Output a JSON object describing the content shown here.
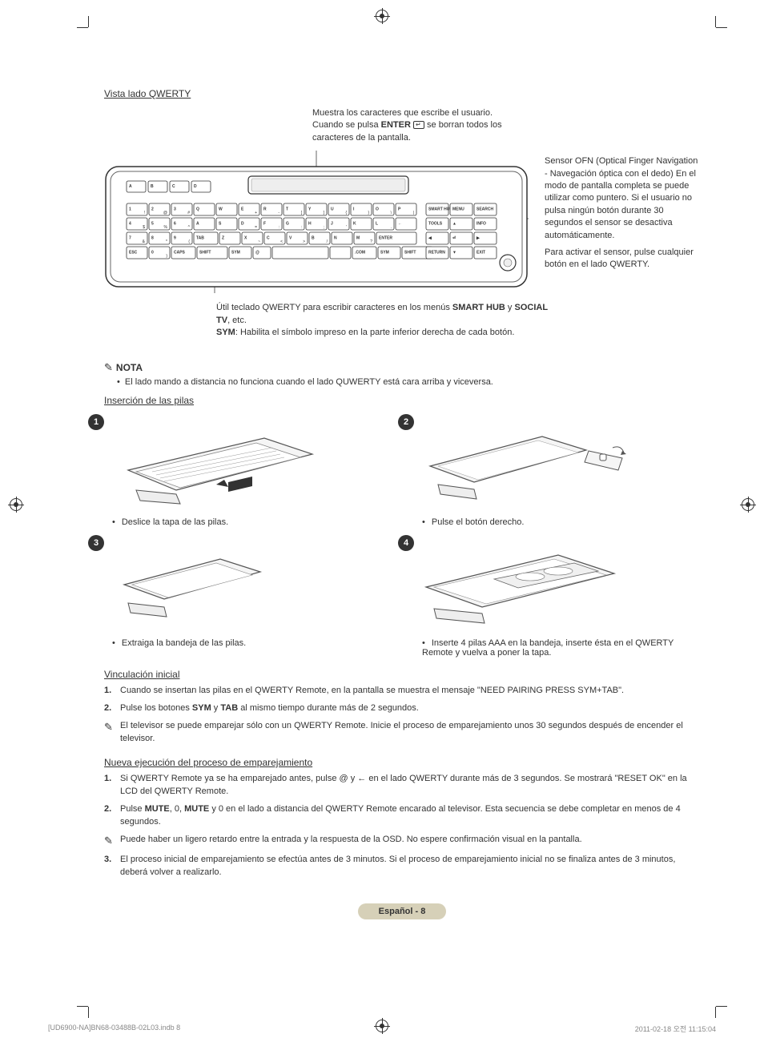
{
  "heading_qwerty": "Vista lado QWERTY",
  "callout_top_line1": "Muestra los caracteres que escribe el usuario.",
  "callout_top_line2a": "Cuando se pulsa ",
  "callout_top_line2b": "ENTER",
  "callout_top_line2c": " se borran todos los",
  "callout_top_line3": "caracteres de la pantalla.",
  "sensor": {
    "p1": "Sensor OFN (Optical Finger Navigation - Navegación óptica con el dedo) En el modo de pantalla completa se puede utilizar como puntero. Si el usuario no pulsa ningún botón durante 30 segundos el sensor se desactiva automáticamente.",
    "p2": "Para activar el sensor, pulse cualquier botón en el lado QWERTY."
  },
  "qwerty_desc": {
    "line1a": "Útil teclado QWERTY para escribir caracteres en los menús ",
    "line1b": "SMART HUB",
    "line1c": " y ",
    "line1d": "SOCIAL TV",
    "line1e": ", etc.",
    "line2a": "SYM",
    "line2b": ": Habilita el símbolo impreso en la parte inferior derecha de cada botón."
  },
  "nota_label": "NOTA",
  "nota_bullet": "El lado mando a distancia no funciona cuando el lado QUWERTY está cara arriba y viceversa.",
  "heading_battery": "Inserción de las pilas",
  "steps": {
    "s1": "1",
    "s2": "2",
    "s3": "3",
    "s4": "4",
    "c1": "Deslice la tapa de las pilas.",
    "c2": "Pulse el botón derecho.",
    "c3": "Extraiga la bandeja de las pilas.",
    "c4": "Inserte 4 pilas AAA en la bandeja, inserte ésta en el QWERTY Remote y vuelva a poner la tapa."
  },
  "heading_pairing": "Vinculación inicial",
  "pairing": {
    "n1": "1.",
    "t1": "Cuando se insertan las pilas en el QWERTY Remote, en la pantalla se muestra el mensaje \"NEED PAIRING PRESS SYM+TAB\".",
    "n2": "2.",
    "t2a": "Pulse los botones ",
    "t2b": "SYM",
    "t2c": " y ",
    "t2d": "TAB",
    "t2e": " al mismo tiempo durante más de 2 segundos.",
    "note": "El televisor se puede emparejar sólo con un QWERTY Remote. Inicie el proceso de emparejamiento unos 30 segundos después de encender el televisor."
  },
  "heading_repair": "Nueva ejecución del proceso de emparejamiento",
  "repair": {
    "n1": "1.",
    "t1": "Si QWERTY Remote ya se ha emparejado antes, pulse @ y ← en el lado QWERTY durante más de 3 segundos. Se mostrará \"RESET OK\" en la LCD del QWERTY Remote.",
    "n2": "2.",
    "t2a": "Pulse ",
    "t2b": "MUTE",
    "t2c": ", 0, ",
    "t2d": "MUTE",
    "t2e": " y 0 en el lado a distancia del QWERTY Remote encarado al televisor. Esta secuencia se debe completar en menos de 4 segundos.",
    "note": "Puede haber un ligero retardo entre la entrada y la respuesta de la OSD. No espere confirmación visual en la pantalla.",
    "n3": "3.",
    "t3": "El proceso inicial de emparejamiento se efectúa antes de 3 minutos. Si el proceso de emparejamiento inicial no se finaliza antes de 3 minutos, deberá volver a realizarlo."
  },
  "page_label": "Español - 8",
  "footer_left": "[UD6900-NA]BN68-03488B-02L03.indb   8",
  "footer_right": "2011-02-18   오전 11:15:04",
  "keyboard": {
    "display_keys": [
      "A",
      "B",
      "C",
      "D"
    ],
    "row1": [
      "1",
      "2",
      "3",
      "Q",
      "W",
      "E",
      "R",
      "T",
      "Y",
      "U",
      "I",
      "O",
      "P"
    ],
    "row1_sym": [
      "!",
      "@",
      "#",
      "",
      "",
      "+",
      "-",
      "[",
      "]",
      "{",
      "}",
      "\\",
      "|"
    ],
    "row1_right": [
      "SMART HUB",
      "MENU",
      "SEARCH"
    ],
    "row2": [
      "4",
      "5",
      "6",
      "A",
      "S",
      "D",
      "F",
      "G",
      "H",
      "J",
      "K",
      "L",
      "←"
    ],
    "row2_sym": [
      "$",
      "%",
      "^",
      "",
      "",
      "=",
      ":",
      ":",
      ";",
      "'",
      "",
      ".",
      ""
    ],
    "row2_right": [
      "TOOLS",
      "▲",
      "INFO"
    ],
    "row3": [
      "7",
      "8",
      "9",
      "TAB",
      "Z",
      "X",
      "C",
      "V",
      "B",
      "N",
      "M",
      "ENTER"
    ],
    "row3_sym": [
      "&",
      "*",
      "(",
      "",
      "",
      "~",
      "<",
      ">",
      "/",
      "",
      "?",
      ""
    ],
    "row3_right": [
      "◀",
      "⏎",
      "▶"
    ],
    "row4": [
      "ESC",
      "0",
      "CAPS",
      "SHIFT",
      "SYM",
      "@",
      "",
      "",
      ".COM",
      "SYM",
      "SHIFT"
    ],
    "row4_sym": [
      "",
      ")",
      "",
      "",
      "",
      "",
      "",
      "",
      "",
      "",
      ""
    ],
    "row4_right": [
      "RETURN",
      "▼",
      "EXIT"
    ]
  },
  "colors": {
    "text": "#333333",
    "badge_bg": "#d6d0b8",
    "line": "#666666"
  }
}
